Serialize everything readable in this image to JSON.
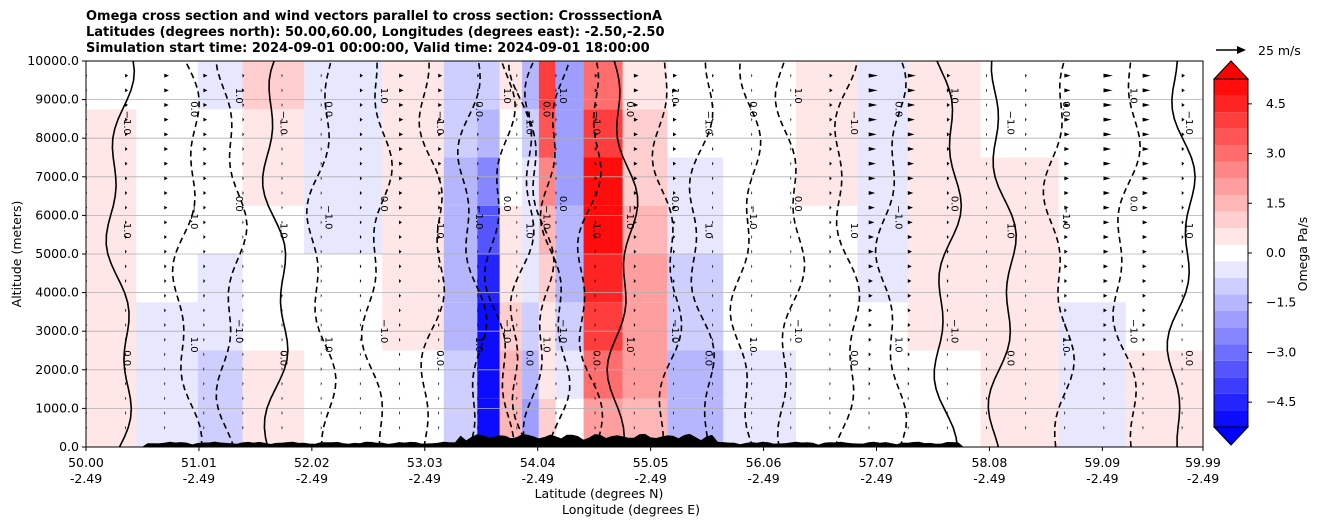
{
  "chart_data": {
    "type": "heatmap",
    "title_lines": [
      "Omega cross section and wind vectors parallel to cross section: CrosssectionA",
      "Latitudes (degrees north): 50.00,60.00, Longitudes (degrees east): -2.50,-2.50",
      "Simulation start time: 2024-09-01 00:00:00, Valid time: 2024-09-01 18:00:00"
    ],
    "ylabel": "Altitude (meters)",
    "xlabel_lines": [
      "Latitude (degrees N)",
      "Longitude (degrees E)"
    ],
    "ylim": [
      0,
      10000
    ],
    "xlim": [
      50.0,
      59.99
    ],
    "y_ticks": [
      "0.0",
      "1000.0",
      "2000.0",
      "3000.0",
      "4000.0",
      "5000.0",
      "6000.0",
      "7000.0",
      "8000.0",
      "9000.0",
      "10000.0"
    ],
    "x_ticks": [
      {
        "lat": "50.00",
        "lon": "-2.49"
      },
      {
        "lat": "51.01",
        "lon": "-2.49"
      },
      {
        "lat": "52.02",
        "lon": "-2.49"
      },
      {
        "lat": "53.03",
        "lon": "-2.49"
      },
      {
        "lat": "54.04",
        "lon": "-2.49"
      },
      {
        "lat": "55.05",
        "lon": "-2.49"
      },
      {
        "lat": "56.06",
        "lon": "-2.49"
      },
      {
        "lat": "57.07",
        "lon": "-2.49"
      },
      {
        "lat": "58.08",
        "lon": "-2.49"
      },
      {
        "lat": "59.09",
        "lon": "-2.49"
      },
      {
        "lat": "59.99",
        "lon": "-2.49"
      }
    ],
    "colorbar": {
      "label": "Omega Pa/s",
      "range": [
        -5.25,
        5.25
      ],
      "ticks": [
        "4.5",
        "3.0",
        "1.5",
        "0.0",
        "−1.5",
        "−3.0",
        "−4.5"
      ],
      "colormap": "bwr",
      "extend": "both"
    },
    "quiver_key": "25 m/s",
    "contour_labels": [
      "0.0",
      "1.0",
      "−1.0"
    ],
    "omega_columns": [
      {
        "lat": 50.1,
        "omega": 0.6
      },
      {
        "lat": 50.8,
        "omega": -0.3
      },
      {
        "lat": 51.2,
        "omega": -1.2
      },
      {
        "lat": 51.6,
        "omega": 1.2
      },
      {
        "lat": 52.3,
        "omega": -0.7
      },
      {
        "lat": 53.0,
        "omega": 0.7
      },
      {
        "lat": 53.4,
        "omega": -1.5
      },
      {
        "lat": 53.6,
        "omega": -5.2
      },
      {
        "lat": 53.8,
        "omega": 1.6
      },
      {
        "lat": 54.0,
        "omega": -3.2
      },
      {
        "lat": 54.1,
        "omega": 4.5
      },
      {
        "lat": 54.3,
        "omega": -2.2
      },
      {
        "lat": 54.6,
        "omega": 5.0
      },
      {
        "lat": 55.0,
        "omega": 2.0
      },
      {
        "lat": 55.4,
        "omega": -1.5
      },
      {
        "lat": 56.0,
        "omega": -0.6
      },
      {
        "lat": 56.7,
        "omega": 0.6
      },
      {
        "lat": 57.1,
        "omega": -0.6
      },
      {
        "lat": 57.6,
        "omega": 0.5
      },
      {
        "lat": 58.4,
        "omega": 0.4
      },
      {
        "lat": 59.0,
        "omega": -0.3
      },
      {
        "lat": 59.6,
        "omega": 0.5
      }
    ]
  },
  "colors": {
    "positive": "#ff0000",
    "negative": "#0000ff",
    "terrain": "#000000",
    "grid": "#b0b0b0"
  }
}
